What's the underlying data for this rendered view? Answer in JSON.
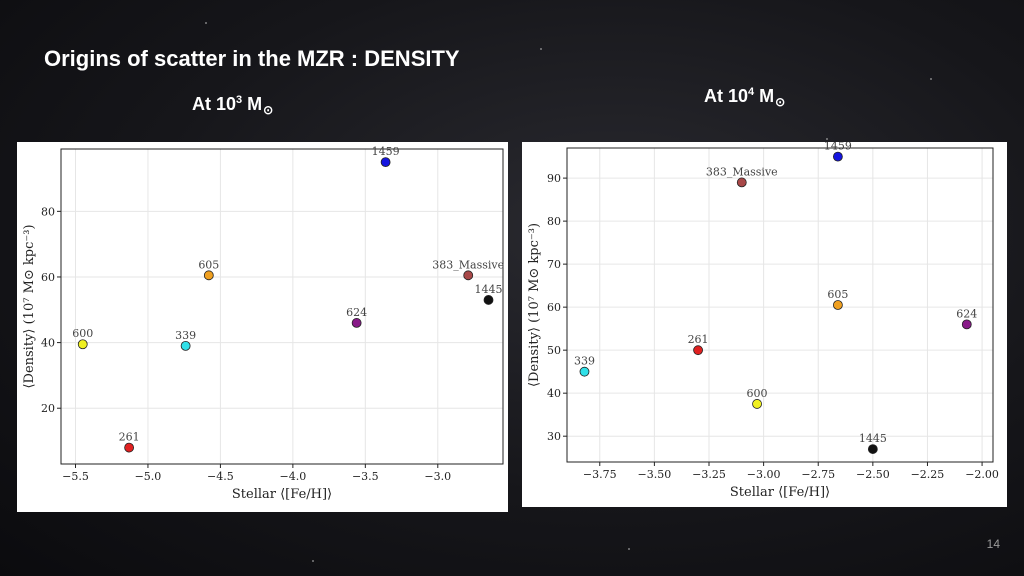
{
  "slide": {
    "title": "Origins of scatter in the MZR :  DENSITY",
    "subtitle_left": {
      "prefix": "At 10",
      "exp": "3",
      "unit": "M",
      "unit_sub": "⊙"
    },
    "subtitle_right": {
      "prefix": "At 10",
      "exp": "4",
      "unit": "M",
      "unit_sub": "⊙"
    },
    "page_number": "14"
  },
  "chart_data": [
    {
      "type": "scatter",
      "xlabel": "Stellar ⟨[Fe/H]⟩",
      "ylabel": "⟨Density⟩ (10⁷ M⊙ kpc⁻³)",
      "xlim": [
        -5.6,
        -2.55
      ],
      "ylim": [
        3,
        99
      ],
      "xticks": [
        -5.5,
        -5.0,
        -4.5,
        -4.0,
        -3.5,
        -3.0
      ],
      "xtick_labels": [
        "−5.5",
        "−5.0",
        "−4.5",
        "−4.0",
        "−3.5",
        "−3.0"
      ],
      "yticks": [
        20,
        40,
        60,
        80
      ],
      "ytick_labels": [
        "20",
        "40",
        "60",
        "80"
      ],
      "grid": true,
      "points": [
        {
          "label": "1459",
          "x": -3.36,
          "y": 95,
          "color": "#1515e0"
        },
        {
          "label": "605",
          "x": -4.58,
          "y": 60.5,
          "color": "#f0a020"
        },
        {
          "label": "383_Massive",
          "x": -2.79,
          "y": 60.5,
          "color": "#a84848"
        },
        {
          "label": "1445",
          "x": -2.65,
          "y": 53,
          "color": "#111111"
        },
        {
          "label": "624",
          "x": -3.56,
          "y": 46,
          "color": "#881a88"
        },
        {
          "label": "600",
          "x": -5.45,
          "y": 39.5,
          "color": "#f0f020"
        },
        {
          "label": "339",
          "x": -4.74,
          "y": 39,
          "color": "#30e0e8"
        },
        {
          "label": "261",
          "x": -5.13,
          "y": 8,
          "color": "#e02020"
        }
      ]
    },
    {
      "type": "scatter",
      "xlabel": "Stellar ⟨[Fe/H]⟩",
      "ylabel": "⟨Density⟩ (10⁷ M⊙ kpc⁻³)",
      "xlim": [
        -3.9,
        -1.95
      ],
      "ylim": [
        24,
        97
      ],
      "xticks": [
        -3.75,
        -3.5,
        -3.25,
        -3.0,
        -2.75,
        -2.5,
        -2.25,
        -2.0
      ],
      "xtick_labels": [
        "−3.75",
        "−3.50",
        "−3.25",
        "−3.00",
        "−2.75",
        "−2.50",
        "−2.25",
        "−2.00"
      ],
      "yticks": [
        30,
        40,
        50,
        60,
        70,
        80,
        90
      ],
      "ytick_labels": [
        "30",
        "40",
        "50",
        "60",
        "70",
        "80",
        "90"
      ],
      "grid": true,
      "points": [
        {
          "label": "1459",
          "x": -2.66,
          "y": 95,
          "color": "#1515e0"
        },
        {
          "label": "383_Massive",
          "x": -3.1,
          "y": 89,
          "color": "#a84848"
        },
        {
          "label": "605",
          "x": -2.66,
          "y": 60.5,
          "color": "#f0a020"
        },
        {
          "label": "624",
          "x": -2.07,
          "y": 56,
          "color": "#881a88"
        },
        {
          "label": "261",
          "x": -3.3,
          "y": 50,
          "color": "#e02020"
        },
        {
          "label": "339",
          "x": -3.82,
          "y": 45,
          "color": "#30e0e8"
        },
        {
          "label": "600",
          "x": -3.03,
          "y": 37.5,
          "color": "#f0f020"
        },
        {
          "label": "1445",
          "x": -2.5,
          "y": 27,
          "color": "#111111"
        }
      ]
    }
  ]
}
